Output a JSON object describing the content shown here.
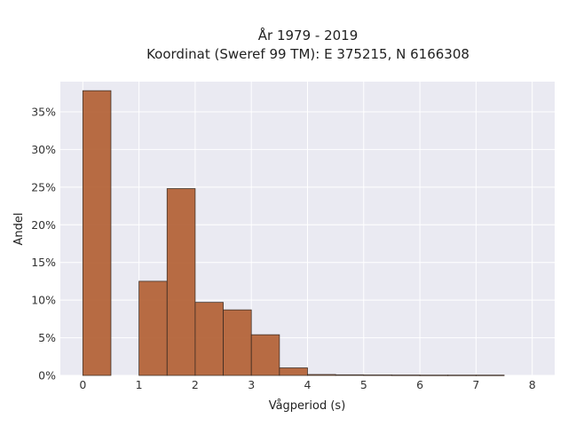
{
  "chart_data": {
    "type": "bar",
    "title_line1": "År 1979 - 2019",
    "title_line2": "Koordinat (Sweref 99 TM): E 375215, N 6166308",
    "xlabel": "Vågperiod (s)",
    "ylabel": "Andel",
    "xlim": [
      -0.4,
      8.4
    ],
    "ylim": [
      0,
      0.39
    ],
    "xticks": [
      0,
      1,
      2,
      3,
      4,
      5,
      6,
      7,
      8
    ],
    "xtick_labels": [
      "0",
      "1",
      "2",
      "3",
      "4",
      "5",
      "6",
      "7",
      "8"
    ],
    "yticks": [
      0,
      0.05,
      0.1,
      0.15,
      0.2,
      0.25,
      0.3,
      0.35
    ],
    "ytick_labels": [
      "0%",
      "5%",
      "10%",
      "15%",
      "20%",
      "25%",
      "30%",
      "35%"
    ],
    "grid": true,
    "bar_color": "#b5653a",
    "edge_color": "#3a2a20",
    "background_color": "#eaeaf2",
    "bins": [
      {
        "x0": 0.0,
        "x1": 0.5,
        "value": 0.378
      },
      {
        "x0": 0.5,
        "x1": 1.0,
        "value": 0.0
      },
      {
        "x0": 1.0,
        "x1": 1.5,
        "value": 0.125
      },
      {
        "x0": 1.5,
        "x1": 2.0,
        "value": 0.248
      },
      {
        "x0": 2.0,
        "x1": 2.5,
        "value": 0.097
      },
      {
        "x0": 2.5,
        "x1": 3.0,
        "value": 0.087
      },
      {
        "x0": 3.0,
        "x1": 3.5,
        "value": 0.054
      },
      {
        "x0": 3.5,
        "x1": 4.0,
        "value": 0.01
      },
      {
        "x0": 4.0,
        "x1": 4.5,
        "value": 0.0012
      },
      {
        "x0": 4.5,
        "x1": 5.0,
        "value": 0.0008
      },
      {
        "x0": 5.0,
        "x1": 5.5,
        "value": 0.0006
      },
      {
        "x0": 5.5,
        "x1": 6.0,
        "value": 0.0005
      },
      {
        "x0": 6.0,
        "x1": 6.5,
        "value": 0.0004
      },
      {
        "x0": 6.5,
        "x1": 7.0,
        "value": 0.0004
      },
      {
        "x0": 7.0,
        "x1": 7.5,
        "value": 0.0004
      }
    ]
  }
}
